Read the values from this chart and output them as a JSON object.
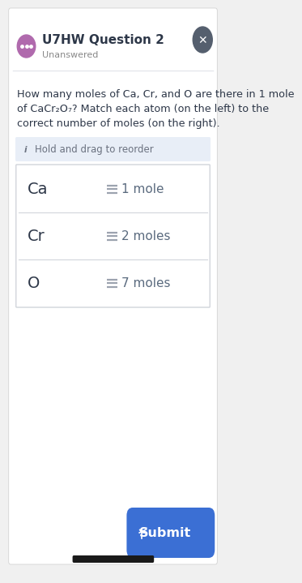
{
  "bg_color": "#f0f0f0",
  "card_color": "#ffffff",
  "title": "U7HW Question 2",
  "subtitle": "Unanswered",
  "title_color": "#2d3748",
  "subtitle_color": "#888888",
  "icon_bg": "#b06aad",
  "close_btn_color": "#555f6e",
  "question_line1": "How many moles of Ca, Cr, and O are there in 1 mole",
  "question_line2": "of CaCr₂O₇? Match each atom (on the left) to the",
  "question_line3": "correct number of moles (on the right).",
  "question_color": "#2d3748",
  "hint_bg": "#e8eef7",
  "hint_text": "Hold and drag to reorder",
  "hint_color": "#6b7280",
  "rows": [
    {
      "atom": "Ca",
      "moles": "1 mole"
    },
    {
      "atom": "Cr",
      "moles": "2 moles"
    },
    {
      "atom": "O",
      "moles": "7 moles"
    }
  ],
  "row_border_color": "#d1d5db",
  "atom_color": "#2d3748",
  "moles_color": "#5a6a7e",
  "hamburger_color": "#9ca3af",
  "submit_bg": "#3b6fd4",
  "submit_text": "Submit",
  "submit_text_color": "#ffffff",
  "divider_color": "#e5e7eb",
  "bottom_bar_color": "#1a1a1a"
}
